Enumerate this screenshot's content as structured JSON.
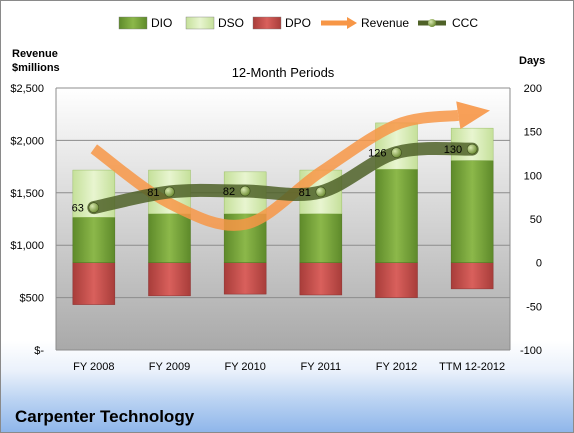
{
  "chart_data": {
    "type": "bar",
    "title": "12-Month Periods",
    "company": "Carpenter Technology",
    "left_axis_label_lines": [
      "Revenue",
      "$millions"
    ],
    "right_axis_label": "Days",
    "categories": [
      "FY 2008",
      "FY 2009",
      "FY 2010",
      "FY 2011",
      "FY 2012",
      "TTM 12-2012"
    ],
    "left_ticks": [
      "$-",
      "$500",
      "$1,000",
      "$1,500",
      "$2,000",
      "$2,500"
    ],
    "right_ticks": [
      "-100",
      "-50",
      "0",
      "50",
      "100",
      "150",
      "200"
    ],
    "ylim_left": [
      0,
      2500
    ],
    "ylim_right": [
      -100,
      200
    ],
    "legend": [
      "DIO",
      "DSO",
      "DPO",
      "Revenue",
      "CCC"
    ],
    "legend_position": "top",
    "series": [
      {
        "name": "DIO",
        "axis": "right",
        "color": "#76a33a",
        "values": [
          52,
          56,
          56,
          56,
          107,
          117
        ]
      },
      {
        "name": "DSO",
        "axis": "right",
        "color": "#d6ecb2",
        "values": [
          54,
          50,
          48,
          50,
          53,
          37
        ]
      },
      {
        "name": "DPO",
        "axis": "right",
        "color": "#c0504d",
        "values": [
          -48,
          -38,
          -36,
          -37,
          -40,
          -30
        ]
      },
      {
        "name": "Revenue",
        "axis": "left",
        "color": "#f79646",
        "values": [
          1920,
          1400,
          1200,
          1700,
          2150,
          2260
        ]
      },
      {
        "name": "CCC",
        "axis": "right",
        "color": "#4f6228",
        "values": [
          63,
          81,
          82,
          81,
          126,
          130
        ]
      }
    ],
    "ccc_labels": [
      "63",
      "81",
      "82",
      "81",
      "126",
      "130"
    ]
  }
}
